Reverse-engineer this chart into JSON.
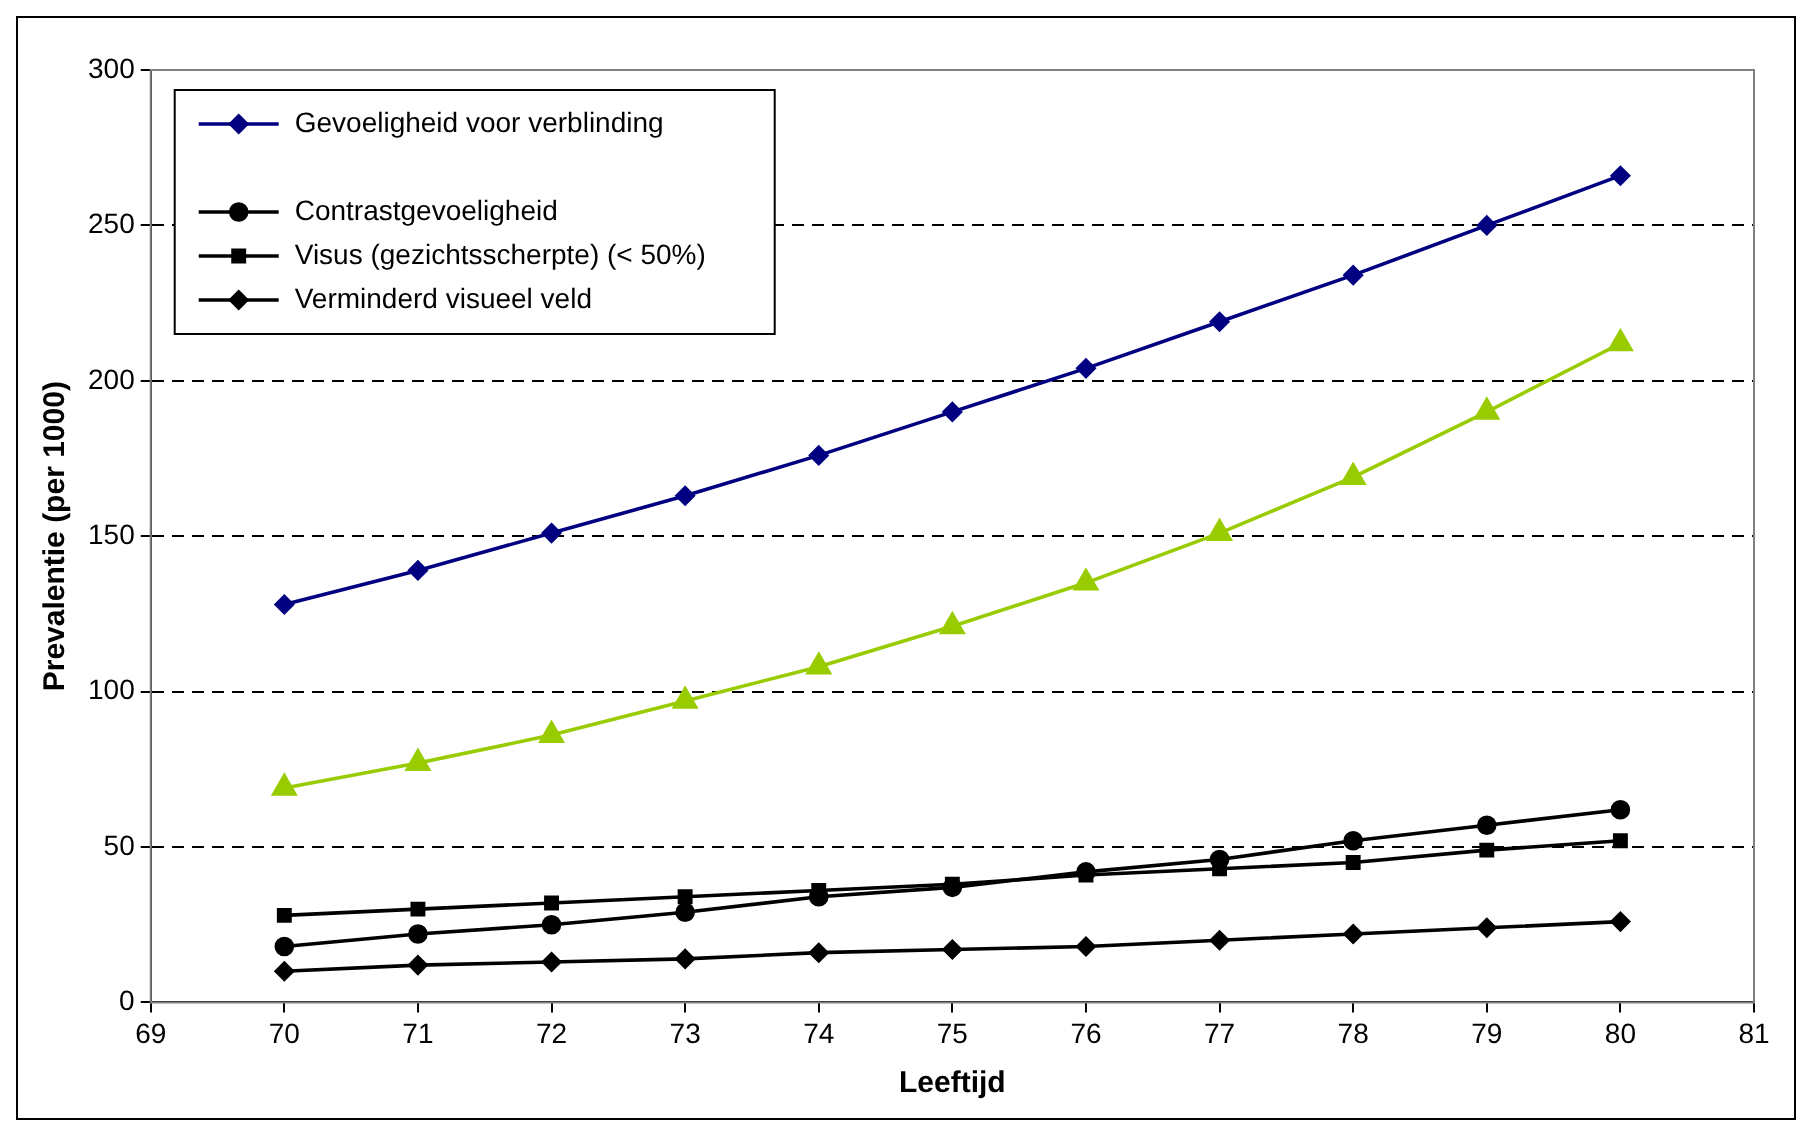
{
  "chart_data": {
    "type": "line",
    "xlabel": "Leeftijd",
    "ylabel": "Prevalentie (per 1000)",
    "x": [
      70,
      71,
      72,
      73,
      74,
      75,
      76,
      77,
      78,
      79,
      80
    ],
    "xlim": [
      69,
      81
    ],
    "xticks": [
      69,
      70,
      71,
      72,
      73,
      74,
      75,
      76,
      77,
      78,
      79,
      80,
      81
    ],
    "ylim": [
      0,
      300
    ],
    "yticks": [
      0,
      50,
      100,
      150,
      200,
      250,
      300
    ],
    "grid": "y",
    "legend": "top left",
    "series": [
      {
        "name": "Gevoeligheid voor verblinding",
        "color": "#000080",
        "marker": "diamond",
        "values": [
          128,
          139,
          151,
          163,
          176,
          190,
          204,
          219,
          234,
          250,
          266
        ]
      },
      {
        "color": "#99cc00",
        "marker": "triangle",
        "values": [
          69,
          77,
          86,
          97,
          108,
          121,
          135,
          151,
          169,
          190,
          212
        ]
      },
      {
        "name": "Contrastgevoeligheid",
        "color": "#000000",
        "marker": "circle",
        "values": [
          18,
          22,
          25,
          29,
          34,
          37,
          42,
          46,
          52,
          57,
          62
        ]
      },
      {
        "name": "Visus (gezichtsscherpte) (< 50%)",
        "color": "#000000",
        "marker": "square",
        "values": [
          28,
          30,
          32,
          34,
          36,
          38,
          41,
          43,
          45,
          49,
          52
        ]
      },
      {
        "name": "Verminderd visueel veld",
        "color": "#000000",
        "marker": "diamond",
        "values": [
          10,
          12,
          13,
          14,
          16,
          17,
          18,
          20,
          22,
          24,
          26
        ]
      }
    ]
  }
}
